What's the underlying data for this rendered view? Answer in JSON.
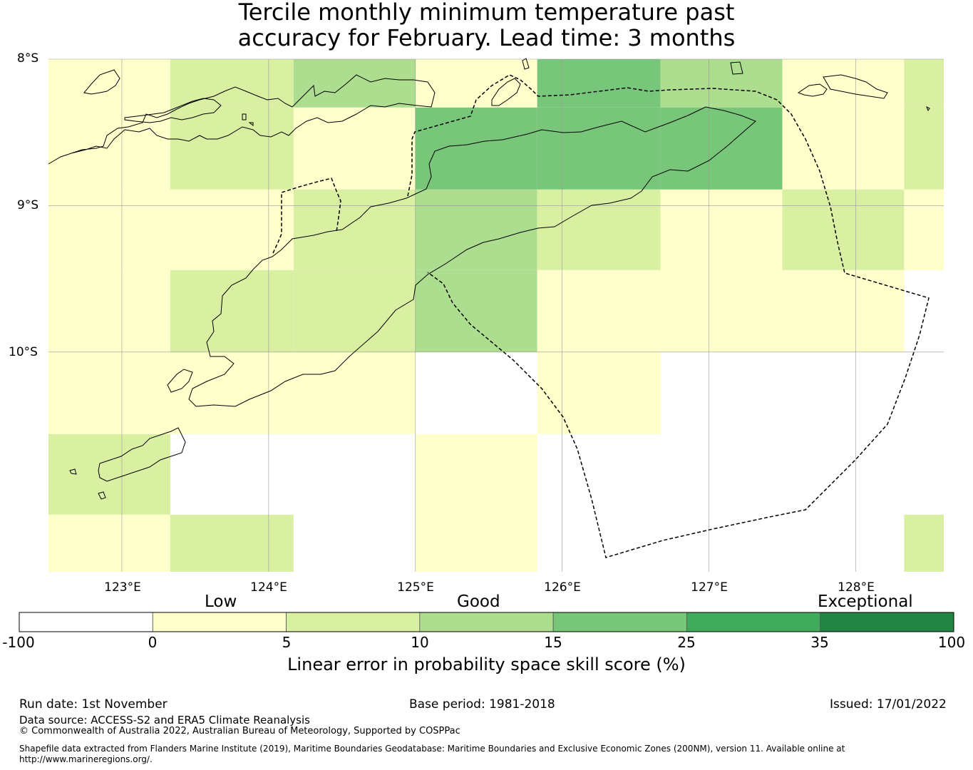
{
  "title": {
    "line1": "Tercile monthly minimum temperature past",
    "line2": "accuracy for February. Lead time: 3 months"
  },
  "map": {
    "lat_labels": [
      "8°S",
      "9°S",
      "10°S"
    ],
    "lon_labels": [
      "123°E",
      "124°E",
      "125°E",
      "126°E",
      "127°E",
      "128°E"
    ],
    "extent": {
      "lon_min": 122.5,
      "lon_max": 128.6,
      "lat_max": -8.0,
      "lat_min": -11.5
    },
    "cells": [
      {
        "lon": [
          122.5,
          123.33
        ],
        "lat": [
          -8.0,
          -8.33
        ],
        "cat": 1
      },
      {
        "lon": [
          123.33,
          124.17
        ],
        "lat": [
          -8.0,
          -8.33
        ],
        "cat": 2
      },
      {
        "lon": [
          124.17,
          125.0
        ],
        "lat": [
          -8.0,
          -8.33
        ],
        "cat": 3
      },
      {
        "lon": [
          125.0,
          125.83
        ],
        "lat": [
          -8.0,
          -8.33
        ],
        "cat": 1
      },
      {
        "lon": [
          125.83,
          126.67
        ],
        "lat": [
          -8.0,
          -8.33
        ],
        "cat": 4
      },
      {
        "lon": [
          126.67,
          127.5
        ],
        "lat": [
          -8.0,
          -8.33
        ],
        "cat": 3
      },
      {
        "lon": [
          127.5,
          128.33
        ],
        "lat": [
          -8.0,
          -8.33
        ],
        "cat": 1
      },
      {
        "lon": [
          128.33,
          128.6
        ],
        "lat": [
          -8.0,
          -8.33
        ],
        "cat": 2
      },
      {
        "lon": [
          122.5,
          123.33
        ],
        "lat": [
          -8.33,
          -8.89
        ],
        "cat": 1
      },
      {
        "lon": [
          123.33,
          124.17
        ],
        "lat": [
          -8.33,
          -8.89
        ],
        "cat": 2
      },
      {
        "lon": [
          124.17,
          125.0
        ],
        "lat": [
          -8.33,
          -8.89
        ],
        "cat": 1
      },
      {
        "lon": [
          125.0,
          125.83
        ],
        "lat": [
          -8.33,
          -8.89
        ],
        "cat": 4
      },
      {
        "lon": [
          125.83,
          126.67
        ],
        "lat": [
          -8.33,
          -8.89
        ],
        "cat": 4
      },
      {
        "lon": [
          126.67,
          127.5
        ],
        "lat": [
          -8.33,
          -8.89
        ],
        "cat": 4
      },
      {
        "lon": [
          127.5,
          128.33
        ],
        "lat": [
          -8.33,
          -8.89
        ],
        "cat": 1
      },
      {
        "lon": [
          128.33,
          128.6
        ],
        "lat": [
          -8.33,
          -8.89
        ],
        "cat": 2
      },
      {
        "lon": [
          122.5,
          123.33
        ],
        "lat": [
          -8.89,
          -9.44
        ],
        "cat": 1
      },
      {
        "lon": [
          123.33,
          124.17
        ],
        "lat": [
          -8.89,
          -9.44
        ],
        "cat": 1
      },
      {
        "lon": [
          124.17,
          125.0
        ],
        "lat": [
          -8.89,
          -9.44
        ],
        "cat": 2
      },
      {
        "lon": [
          125.0,
          125.83
        ],
        "lat": [
          -8.89,
          -9.44
        ],
        "cat": 3
      },
      {
        "lon": [
          125.83,
          126.67
        ],
        "lat": [
          -8.89,
          -9.44
        ],
        "cat": 2
      },
      {
        "lon": [
          126.67,
          127.5
        ],
        "lat": [
          -8.89,
          -9.44
        ],
        "cat": 1
      },
      {
        "lon": [
          127.5,
          128.33
        ],
        "lat": [
          -8.89,
          -9.44
        ],
        "cat": 2
      },
      {
        "lon": [
          128.33,
          128.6
        ],
        "lat": [
          -8.89,
          -9.44
        ],
        "cat": 1
      },
      {
        "lon": [
          122.5,
          123.33
        ],
        "lat": [
          -9.44,
          -10.0
        ],
        "cat": 1
      },
      {
        "lon": [
          123.33,
          124.17
        ],
        "lat": [
          -9.44,
          -10.0
        ],
        "cat": 2
      },
      {
        "lon": [
          124.17,
          125.0
        ],
        "lat": [
          -9.44,
          -10.0
        ],
        "cat": 2
      },
      {
        "lon": [
          125.0,
          125.83
        ],
        "lat": [
          -9.44,
          -10.0
        ],
        "cat": 3
      },
      {
        "lon": [
          125.83,
          126.67
        ],
        "lat": [
          -9.44,
          -10.0
        ],
        "cat": 1
      },
      {
        "lon": [
          126.67,
          127.5
        ],
        "lat": [
          -9.44,
          -10.0
        ],
        "cat": 1
      },
      {
        "lon": [
          127.5,
          128.33
        ],
        "lat": [
          -9.44,
          -10.0
        ],
        "cat": 1
      },
      {
        "lon": [
          122.5,
          123.33
        ],
        "lat": [
          -10.0,
          -10.56
        ],
        "cat": 1
      },
      {
        "lon": [
          123.33,
          124.17
        ],
        "lat": [
          -10.0,
          -10.56
        ],
        "cat": 1
      },
      {
        "lon": [
          124.17,
          125.0
        ],
        "lat": [
          -10.0,
          -10.56
        ],
        "cat": 1
      },
      {
        "lon": [
          125.83,
          126.67
        ],
        "lat": [
          -10.0,
          -10.56
        ],
        "cat": 1
      },
      {
        "lon": [
          122.5,
          123.33
        ],
        "lat": [
          -10.56,
          -11.11
        ],
        "cat": 2
      },
      {
        "lon": [
          125.0,
          125.83
        ],
        "lat": [
          -10.56,
          -11.11
        ],
        "cat": 1
      },
      {
        "lon": [
          122.5,
          123.33
        ],
        "lat": [
          -11.11,
          -11.5
        ],
        "cat": 1
      },
      {
        "lon": [
          123.33,
          124.17
        ],
        "lat": [
          -11.11,
          -11.5
        ],
        "cat": 2
      },
      {
        "lon": [
          125.0,
          125.83
        ],
        "lat": [
          -11.11,
          -11.5
        ],
        "cat": 1
      },
      {
        "lon": [
          128.33,
          128.6
        ],
        "lat": [
          -11.11,
          -11.5
        ],
        "cat": 2
      }
    ]
  },
  "colorbar": {
    "categories": [
      "Low",
      "Good",
      "Exceptional"
    ],
    "ticks": [
      "-100",
      "0",
      "5",
      "10",
      "15",
      "25",
      "35",
      "100"
    ],
    "colors": [
      "#ffffff",
      "#ffffcc",
      "#d9f0a3",
      "#addd8e",
      "#78c679",
      "#41ab5d",
      "#238443"
    ],
    "label": "Linear error in probability space skill score (%)"
  },
  "footer": {
    "run_date": "Run date: 1st November",
    "base_period": "Base period: 1981-2018",
    "issued": "Issued: 17/01/2022",
    "data_source": "Data source: ACCESS-S2 and ERA5 Climate Reanalysis",
    "copyright": "© Commonwealth of Australia 2022, Australian Bureau of Meteorology, Supported by COSPPac",
    "shapefile_line1": "Shapefile data extracted from Flanders Marine Institute (2019), Maritime Boundaries Geodatabase: Maritime Boundaries and Exclusive Economic Zones (200NM), version 11. Available online at",
    "shapefile_line2": "http://www.marineregions.org/."
  }
}
